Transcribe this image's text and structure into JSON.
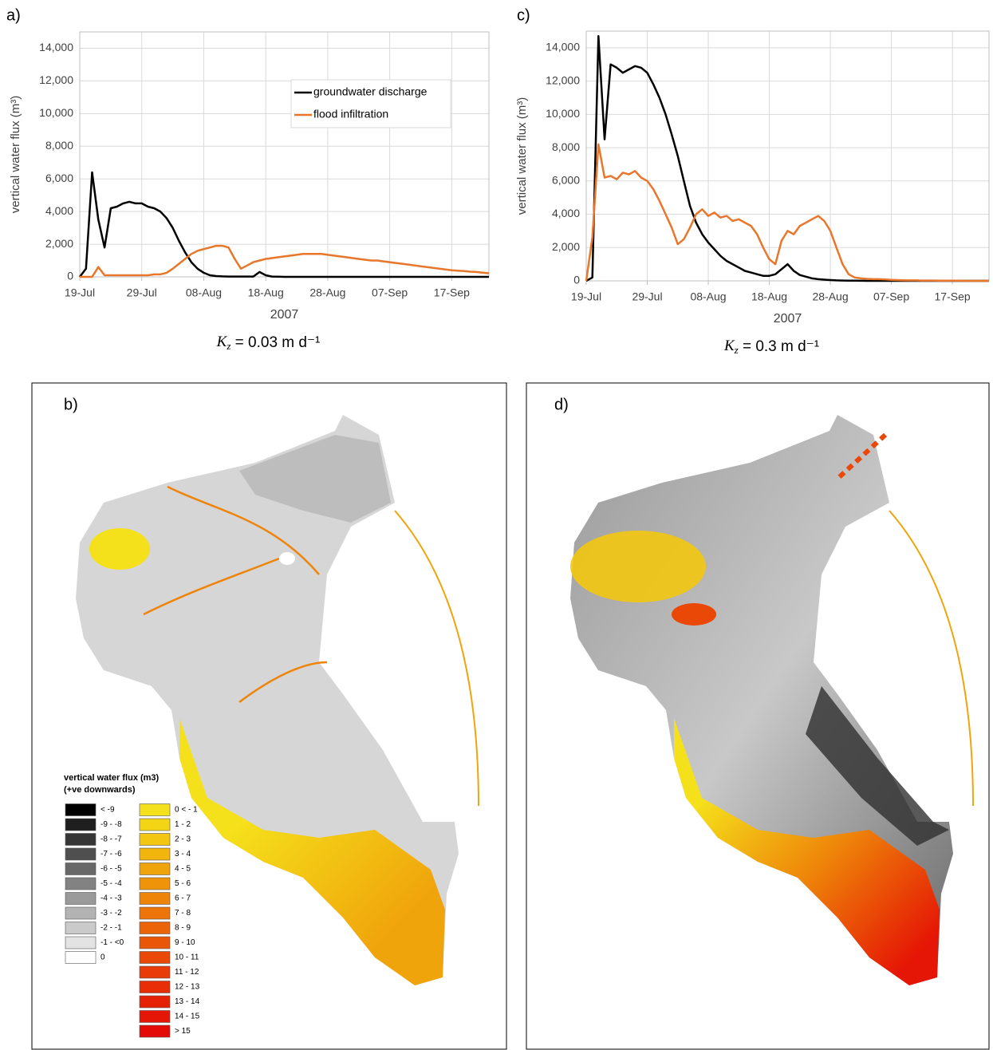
{
  "chart_data": [
    {
      "type": "line",
      "label": "a)",
      "ylabel": "vertical water flux (m³)",
      "xlabel": "2007",
      "caption": {
        "symbol": "K",
        "subscript": "z",
        "text": " = 0.03 m d⁻¹"
      },
      "grid": true,
      "legend": "upper right",
      "xlim": [
        "2007-07-19",
        "2007-09-23"
      ],
      "xticks": [
        {
          "value": "2007-07-19",
          "label": "19-Jul"
        },
        {
          "value": "2007-07-29",
          "label": "29-Jul"
        },
        {
          "value": "2007-08-08",
          "label": "08-Aug"
        },
        {
          "value": "2007-08-18",
          "label": "18-Aug"
        },
        {
          "value": "2007-08-28",
          "label": "28-Aug"
        },
        {
          "value": "2007-09-07",
          "label": "07-Sep"
        },
        {
          "value": "2007-09-17",
          "label": "17-Sep"
        }
      ],
      "ylim": [
        0,
        15000
      ],
      "yticks": [
        0,
        {
          "value": 2000,
          "label": "2,000"
        },
        {
          "value": 4000,
          "label": "4,000"
        },
        {
          "value": 6000,
          "label": "6,000"
        },
        {
          "value": 8000,
          "label": "8,000"
        },
        {
          "value": 10000,
          "label": "10,000"
        },
        {
          "value": 12000,
          "label": "12,000"
        },
        {
          "value": 14000,
          "label": "14,000"
        }
      ],
      "x": [
        "2007-07-19",
        "2007-07-20",
        "2007-07-21",
        "2007-07-22",
        "2007-07-23",
        "2007-07-24",
        "2007-07-25",
        "2007-07-26",
        "2007-07-27",
        "2007-07-28",
        "2007-07-29",
        "2007-07-30",
        "2007-07-31",
        "2007-08-01",
        "2007-08-02",
        "2007-08-03",
        "2007-08-04",
        "2007-08-05",
        "2007-08-06",
        "2007-08-07",
        "2007-08-08",
        "2007-08-09",
        "2007-08-10",
        "2007-08-11",
        "2007-08-12",
        "2007-08-13",
        "2007-08-14",
        "2007-08-15",
        "2007-08-16",
        "2007-08-17",
        "2007-08-18",
        "2007-08-19",
        "2007-08-20",
        "2007-08-21",
        "2007-08-22",
        "2007-08-23",
        "2007-08-24",
        "2007-08-25",
        "2007-08-26",
        "2007-08-27",
        "2007-08-28",
        "2007-08-29",
        "2007-08-30",
        "2007-08-31",
        "2007-09-01",
        "2007-09-02",
        "2007-09-03",
        "2007-09-04",
        "2007-09-05",
        "2007-09-06",
        "2007-09-07",
        "2007-09-08",
        "2007-09-09",
        "2007-09-10",
        "2007-09-11",
        "2007-09-12",
        "2007-09-13",
        "2007-09-14",
        "2007-09-15",
        "2007-09-16",
        "2007-09-17",
        "2007-09-18",
        "2007-09-19",
        "2007-09-20",
        "2007-09-21",
        "2007-09-22",
        "2007-09-23"
      ],
      "series": [
        {
          "name": "groundwater discharge",
          "color": "#000000",
          "values": [
            0,
            500,
            6400,
            3500,
            1800,
            4200,
            4300,
            4500,
            4600,
            4500,
            4500,
            4300,
            4200,
            4000,
            3600,
            3000,
            2200,
            1500,
            900,
            500,
            250,
            100,
            50,
            30,
            20,
            20,
            20,
            20,
            20,
            300,
            100,
            20,
            10,
            0,
            0,
            0,
            0,
            0,
            0,
            0,
            0,
            0,
            0,
            0,
            0,
            0,
            0,
            0,
            0,
            0,
            0,
            0,
            0,
            0,
            0,
            0,
            0,
            0,
            0,
            0,
            0,
            0,
            0,
            0,
            0,
            0,
            0
          ]
        },
        {
          "name": "flood infiltration",
          "color": "#e8762b",
          "values": [
            0,
            0,
            0,
            600,
            100,
            100,
            100,
            100,
            100,
            100,
            100,
            100,
            150,
            150,
            250,
            500,
            800,
            1100,
            1400,
            1600,
            1700,
            1800,
            1900,
            1900,
            1800,
            1100,
            500,
            700,
            900,
            1000,
            1100,
            1150,
            1200,
            1250,
            1300,
            1350,
            1400,
            1400,
            1400,
            1400,
            1350,
            1300,
            1250,
            1200,
            1150,
            1100,
            1050,
            1000,
            1000,
            950,
            900,
            850,
            800,
            750,
            700,
            650,
            600,
            550,
            500,
            450,
            400,
            380,
            350,
            320,
            300,
            260,
            220
          ]
        }
      ]
    },
    {
      "type": "line",
      "label": "c)",
      "ylabel": "vertical water flux (m³)",
      "xlabel": "2007",
      "caption": {
        "symbol": "K",
        "subscript": "z",
        "text": " = 0.3 m d⁻¹"
      },
      "grid": true,
      "xlim": [
        "2007-07-19",
        "2007-09-23"
      ],
      "xticks": [
        {
          "value": "2007-07-19",
          "label": "19-Jul"
        },
        {
          "value": "2007-07-29",
          "label": "29-Jul"
        },
        {
          "value": "2007-08-08",
          "label": "08-Aug"
        },
        {
          "value": "2007-08-18",
          "label": "18-Aug"
        },
        {
          "value": "2007-08-28",
          "label": "28-Aug"
        },
        {
          "value": "2007-09-07",
          "label": "07-Sep"
        },
        {
          "value": "2007-09-17",
          "label": "17-Sep"
        }
      ],
      "ylim": [
        0,
        15000
      ],
      "yticks": [
        0,
        {
          "value": 2000,
          "label": "2,000"
        },
        {
          "value": 4000,
          "label": "4,000"
        },
        {
          "value": 6000,
          "label": "6,000"
        },
        {
          "value": 8000,
          "label": "8,000"
        },
        {
          "value": 10000,
          "label": "10,000"
        },
        {
          "value": 12000,
          "label": "12,000"
        },
        {
          "value": 14000,
          "label": "14,000"
        }
      ],
      "x": [
        "2007-07-19",
        "2007-07-20",
        "2007-07-21",
        "2007-07-22",
        "2007-07-23",
        "2007-07-24",
        "2007-07-25",
        "2007-07-26",
        "2007-07-27",
        "2007-07-28",
        "2007-07-29",
        "2007-07-30",
        "2007-07-31",
        "2007-08-01",
        "2007-08-02",
        "2007-08-03",
        "2007-08-04",
        "2007-08-05",
        "2007-08-06",
        "2007-08-07",
        "2007-08-08",
        "2007-08-09",
        "2007-08-10",
        "2007-08-11",
        "2007-08-12",
        "2007-08-13",
        "2007-08-14",
        "2007-08-15",
        "2007-08-16",
        "2007-08-17",
        "2007-08-18",
        "2007-08-19",
        "2007-08-20",
        "2007-08-21",
        "2007-08-22",
        "2007-08-23",
        "2007-08-24",
        "2007-08-25",
        "2007-08-26",
        "2007-08-27",
        "2007-08-28",
        "2007-08-29",
        "2007-08-30",
        "2007-08-31",
        "2007-09-01",
        "2007-09-02",
        "2007-09-03",
        "2007-09-04",
        "2007-09-05",
        "2007-09-06",
        "2007-09-07",
        "2007-09-08",
        "2007-09-09",
        "2007-09-10",
        "2007-09-11",
        "2007-09-12",
        "2007-09-13",
        "2007-09-14",
        "2007-09-15",
        "2007-09-16",
        "2007-09-17",
        "2007-09-18",
        "2007-09-19",
        "2007-09-20",
        "2007-09-21",
        "2007-09-22",
        "2007-09-23"
      ],
      "series": [
        {
          "color": "#000000",
          "values": [
            0,
            200,
            14700,
            8500,
            13000,
            12800,
            12500,
            12700,
            12900,
            12800,
            12500,
            11800,
            11000,
            10000,
            8800,
            7500,
            6000,
            4500,
            3500,
            2800,
            2300,
            1900,
            1500,
            1200,
            1000,
            800,
            600,
            500,
            400,
            300,
            300,
            400,
            700,
            1000,
            600,
            350,
            250,
            150,
            100,
            70,
            50,
            30,
            20,
            10,
            10,
            5,
            0,
            0,
            0,
            0,
            0,
            0,
            0,
            0,
            0,
            0,
            0,
            0,
            0,
            0,
            0,
            0,
            0,
            0,
            0,
            0,
            0
          ]
        },
        {
          "color": "#e8762b",
          "values": [
            0,
            2600,
            8200,
            6200,
            6300,
            6100,
            6500,
            6400,
            6600,
            6200,
            6000,
            5500,
            4800,
            4000,
            3200,
            2200,
            2500,
            3200,
            4000,
            4300,
            3900,
            4100,
            3800,
            3900,
            3600,
            3700,
            3500,
            3300,
            2800,
            2000,
            1300,
            1000,
            2400,
            3000,
            2800,
            3300,
            3500,
            3700,
            3900,
            3600,
            3000,
            2000,
            1000,
            400,
            200,
            150,
            120,
            100,
            100,
            80,
            60,
            50,
            40,
            30,
            30,
            20,
            20,
            20,
            10,
            10,
            10,
            10,
            0,
            0,
            0,
            0,
            0
          ]
        }
      ]
    }
  ],
  "maps": [
    {
      "label": "b)"
    },
    {
      "label": "d)"
    }
  ],
  "map_legend": {
    "title": "vertical water flux (m3)",
    "subtitle": "(+ve downwards)",
    "columns": [
      [
        {
          "label": "< -9",
          "color": "#000000"
        },
        {
          "label": "-9 - -8",
          "color": "#1f1f1f"
        },
        {
          "label": "-8 - -7",
          "color": "#363636"
        },
        {
          "label": "-7 - -6",
          "color": "#4f4f4f"
        },
        {
          "label": "-6 - -5",
          "color": "#686868"
        },
        {
          "label": "-5 - -4",
          "color": "#828282"
        },
        {
          "label": "-4 - -3",
          "color": "#9a9a9a"
        },
        {
          "label": "-3 - -2",
          "color": "#b3b3b3"
        },
        {
          "label": "-2 - -1",
          "color": "#cacaca"
        },
        {
          "label": "-1 - <0",
          "color": "#e3e3e3"
        },
        {
          "label": "0",
          "color": "#ffffff"
        }
      ],
      [
        {
          "label": "0 < - 1",
          "color": "#f5e11b"
        },
        {
          "label": "1 - 2",
          "color": "#f4d516"
        },
        {
          "label": "2 - 3",
          "color": "#f3c611"
        },
        {
          "label": "3 - 4",
          "color": "#f2b50d"
        },
        {
          "label": "4 - 5",
          "color": "#f0a40b"
        },
        {
          "label": "5 - 6",
          "color": "#ef940a"
        },
        {
          "label": "6 - 7",
          "color": "#ee8409"
        },
        {
          "label": "7 - 8",
          "color": "#ec7409"
        },
        {
          "label": "8 - 9",
          "color": "#eb6508"
        },
        {
          "label": "9 - 10",
          "color": "#ea5608"
        },
        {
          "label": "10 - 11",
          "color": "#e94807"
        },
        {
          "label": "11 - 12",
          "color": "#e83b07"
        },
        {
          "label": "12 - 13",
          "color": "#e72e06"
        },
        {
          "label": "13 - 14",
          "color": "#e62206"
        },
        {
          "label": "14 - 15",
          "color": "#e51605"
        },
        {
          "label": "> 15",
          "color": "#e40a05"
        }
      ]
    ]
  }
}
